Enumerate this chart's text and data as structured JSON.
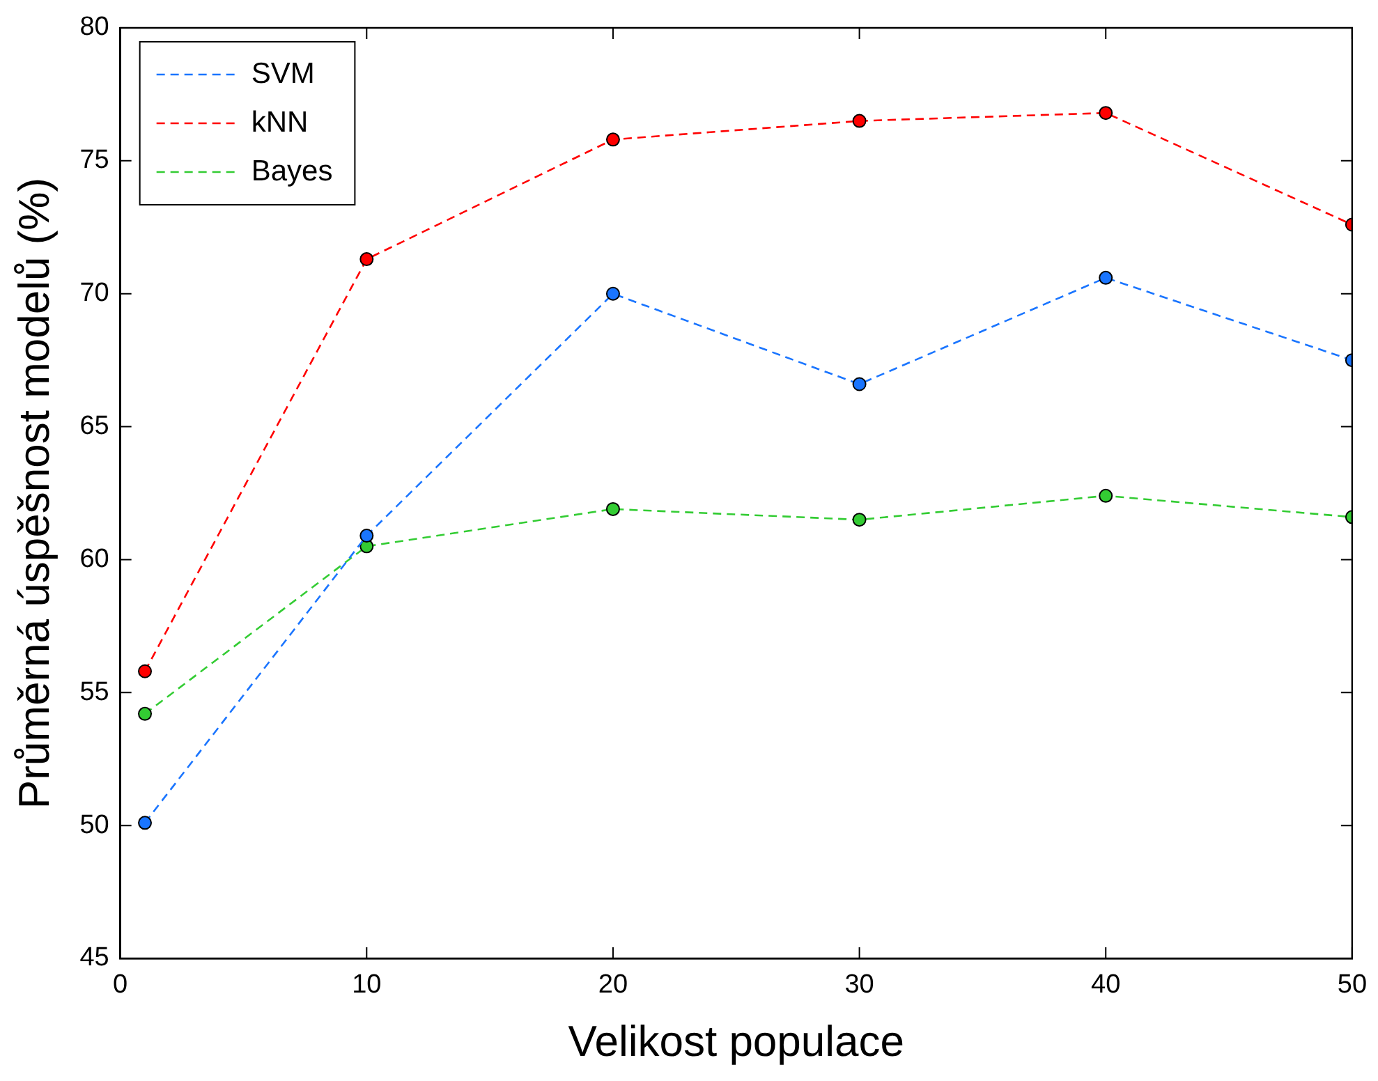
{
  "chart_data": {
    "type": "line",
    "xlabel": "Velikost populace",
    "ylabel": "Průměrná úspěšnost modelů (%)",
    "x": [
      1,
      10,
      20,
      30,
      40,
      50
    ],
    "series": [
      {
        "name": "SVM",
        "color": "#1a75ff",
        "values": [
          50.1,
          60.9,
          70.0,
          66.6,
          70.6,
          67.5
        ]
      },
      {
        "name": "kNN",
        "color": "#ff0000",
        "values": [
          55.8,
          71.3,
          75.8,
          76.5,
          76.8,
          72.6
        ]
      },
      {
        "name": "Bayes",
        "color": "#33cc33",
        "values": [
          54.2,
          60.5,
          61.9,
          61.5,
          62.4,
          61.6
        ]
      }
    ],
    "xlim": [
      0,
      50
    ],
    "xticks": [
      0,
      10,
      20,
      30,
      40,
      50
    ],
    "ylim": [
      45,
      80
    ],
    "yticks": [
      45,
      50,
      55,
      60,
      65,
      70,
      75,
      80
    ],
    "grid": false,
    "legend": "top left",
    "marker": "circle",
    "line_style": "dashed"
  }
}
